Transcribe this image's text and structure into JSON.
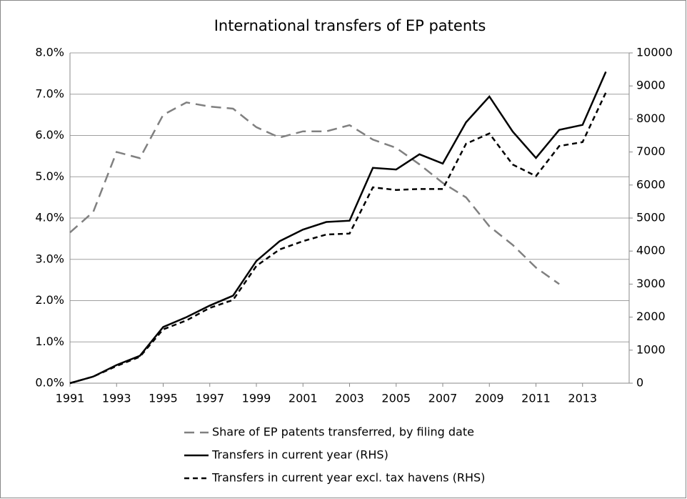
{
  "chart_data": {
    "type": "line",
    "title": "International transfers of EP patents",
    "x": [
      1991,
      1992,
      1993,
      1994,
      1995,
      1996,
      1997,
      1998,
      1999,
      2000,
      2001,
      2002,
      2003,
      2004,
      2005,
      2006,
      2007,
      2008,
      2009,
      2010,
      2011,
      2012,
      2013,
      2014
    ],
    "xlim": [
      1991,
      2015
    ],
    "xticks": [
      1991,
      1993,
      1995,
      1997,
      1999,
      2001,
      2003,
      2005,
      2007,
      2009,
      2011,
      2013
    ],
    "ylim": [
      0,
      8
    ],
    "yticks": [
      {
        "value": 0,
        "label": "0.0%"
      },
      {
        "value": 1,
        "label": "1.0%"
      },
      {
        "value": 2,
        "label": "2.0%"
      },
      {
        "value": 3,
        "label": "3.0%"
      },
      {
        "value": 4,
        "label": "4.0%"
      },
      {
        "value": 5,
        "label": "5.0%"
      },
      {
        "value": 6,
        "label": "6.0%"
      },
      {
        "value": 7,
        "label": "7.0%"
      },
      {
        "value": 8,
        "label": "8.0%"
      }
    ],
    "y2lim": [
      0,
      10000
    ],
    "y2ticks": [
      0,
      1000,
      2000,
      3000,
      4000,
      5000,
      6000,
      7000,
      8000,
      9000,
      10000
    ],
    "grid": true,
    "legend": "bottom",
    "series": [
      {
        "name": "Share of EP patents transferred, by filing date",
        "color": "#808080",
        "line_style": "long-dash",
        "values": [
          3.65,
          4.15,
          5.6,
          5.45,
          6.5,
          6.8,
          6.7,
          6.65,
          6.2,
          5.95,
          6.1,
          6.1,
          6.25,
          5.9,
          5.7,
          5.3,
          4.85,
          4.5,
          3.8,
          3.35,
          2.8,
          2.4,
          null,
          null
        ]
      },
      {
        "name": "Transfers in current year (RHS)",
        "color": "#000000",
        "line_style": "solid",
        "axis": "y2",
        "values": [
          0,
          200,
          550,
          830,
          1700,
          2000,
          2350,
          2650,
          3700,
          4300,
          4650,
          4880,
          4920,
          6520,
          6470,
          6930,
          6650,
          7900,
          8680,
          7620,
          6820,
          7670,
          7820,
          9430
        ]
      },
      {
        "name": "Transfers in current year excl. tax havens (RHS)",
        "color": "#000000",
        "line_style": "dash",
        "axis": "y2",
        "values": [
          0,
          200,
          520,
          800,
          1630,
          1900,
          2280,
          2520,
          3550,
          4050,
          4300,
          4500,
          4530,
          5930,
          5850,
          5880,
          5880,
          7250,
          7560,
          6620,
          6270,
          7180,
          7300,
          8800
        ]
      }
    ]
  }
}
